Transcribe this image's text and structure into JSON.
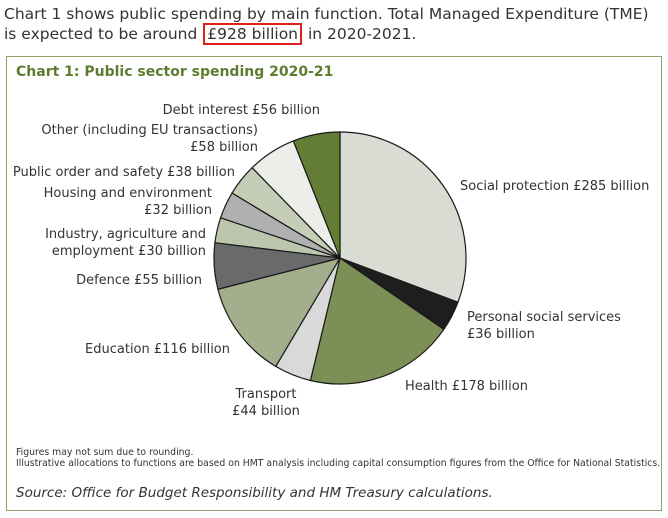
{
  "intro": {
    "part1": "Chart 1 shows public spending by main function. Total Managed Expenditure (TME) is expected to be around",
    "highlight": "£928 billion",
    "part2": "in 2020-2021."
  },
  "chart_data": {
    "type": "pie",
    "title": "Chart 1: Public sector spending 2020-21",
    "unit": "£ billion",
    "slices": [
      {
        "name": "Social protection £285 billion",
        "value": 285,
        "color": "#d8dcd2"
      },
      {
        "name": "Personal social services £36 billion",
        "value": 36,
        "color": "#1e1e1e"
      },
      {
        "name": "Health £178 billion",
        "value": 178,
        "color": "#7b8f57"
      },
      {
        "name": "Transport £44 billion",
        "value": 44,
        "color": "#d9d9d9"
      },
      {
        "name": "Education £116 billion",
        "value": 116,
        "color": "#a2ae8c"
      },
      {
        "name": "Defence £55 billion",
        "value": 55,
        "color": "#6a6a6a"
      },
      {
        "name": "Industry, agriculture and employment £30 billion",
        "value": 30,
        "color": "#bcc6ad"
      },
      {
        "name": "Housing and environment £32 billion",
        "value": 32,
        "color": "#b0b0b0"
      },
      {
        "name": "Public order and safety £38 billion",
        "value": 38,
        "color": "#c5cdb6"
      },
      {
        "name": "Other (including EU transactions) £58 billion",
        "value": 58,
        "color": "#eceeea"
      },
      {
        "name": "Debt interest £56 billion",
        "value": 56,
        "color": "#637d36"
      }
    ]
  },
  "labels": {
    "debt": "Debt interest £56 billion",
    "other_1": "Other (including EU transactions)",
    "other_2": "£58 billion",
    "public_order": "Public order and safety £38 billion",
    "housing_1": "Housing and environment",
    "housing_2": "£32 billion",
    "industry_1": "Industry, agriculture and",
    "industry_2": "employment £30 billion",
    "defence": "Defence £55 billion",
    "education": "Education £116 billion",
    "transport_1": "Transport",
    "transport_2": "£44 billion",
    "health": "Health £178 billion",
    "pss_1": "Personal social services",
    "pss_2": "£36 billion",
    "social": "Social protection £285 billion"
  },
  "footnotes": {
    "line1": "Figures may not sum due to rounding.",
    "line2": "Illustrative allocations to functions are based on HMT analysis including capital consumption figures from the Office for National Statistics."
  },
  "source": "Source: Office for Budget Responsibility and HM Treasury calculations."
}
